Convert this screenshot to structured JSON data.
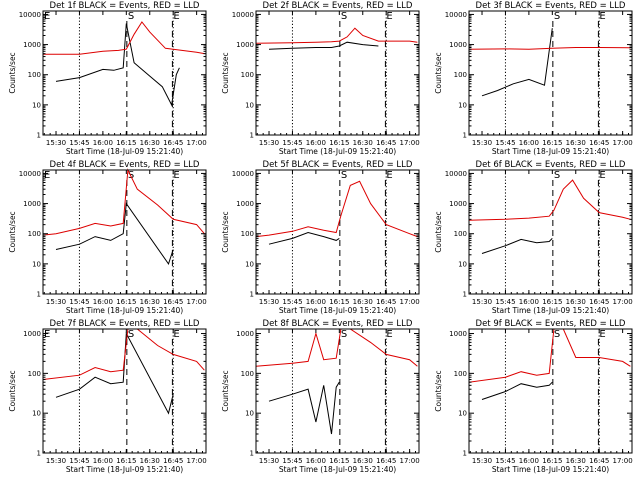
{
  "colors": {
    "events": "#000000",
    "lld": "#dd0000",
    "axis": "#000000"
  },
  "chart_data": [
    {
      "type": "line",
      "title": "Det 1f BLACK = Events, RED = LLD",
      "xlabel": "Start Time (18-Jul-09 15:21:40)",
      "ylabel": "Counts/sec",
      "xticks": [
        "15:30",
        "15:45",
        "16:00",
        "16:15",
        "16:30",
        "16:45",
        "17:00"
      ],
      "yticks": [
        "1",
        "10",
        "100",
        "1000",
        "10000"
      ],
      "ylim": [
        1,
        13000
      ],
      "log_y": true,
      "dotted_lines": [
        "15:45",
        "16:45"
      ],
      "markers": [
        {
          "label": "E",
          "at": "15:21:40"
        },
        {
          "label": "S",
          "at": "16:15:20"
        },
        {
          "label": "E",
          "at": "16:44:30"
        }
      ],
      "series": [
        {
          "name": "Events",
          "color": "#000000",
          "x": [
            "15:30",
            "15:45",
            "16:00",
            "16:07",
            "16:13",
            "16:15",
            "16:20",
            "16:30",
            "16:38",
            "16:44",
            "16:47",
            "16:49"
          ],
          "values": [
            60,
            80,
            150,
            140,
            170,
            5000,
            250,
            90,
            40,
            10,
            100,
            170
          ]
        },
        {
          "name": "LLD",
          "color": "#dd0000",
          "x": [
            "15:21",
            "15:45",
            "16:00",
            "16:10",
            "16:15",
            "16:20",
            "16:25",
            "16:30",
            "16:40",
            "17:00",
            "17:05"
          ],
          "values": [
            480,
            480,
            600,
            640,
            700,
            2200,
            5600,
            2600,
            750,
            560,
            500
          ]
        }
      ]
    },
    {
      "type": "line",
      "title": "Det 2f BLACK = Events, RED = LLD",
      "xlabel": "Start Time (18-Jul-09 15:21:40)",
      "ylabel": "Counts/sec",
      "xticks": [
        "15:30",
        "15:45",
        "16:00",
        "16:15",
        "16:30",
        "16:45",
        "17:00"
      ],
      "yticks": [
        "1",
        "10",
        "100",
        "1000",
        "10000"
      ],
      "ylim": [
        1,
        13000
      ],
      "log_y": true,
      "dotted_lines": [
        "15:45",
        "16:45"
      ],
      "markers": [
        {
          "label": "S",
          "at": "16:15:20"
        },
        {
          "label": "E",
          "at": "16:44:30"
        }
      ],
      "series": [
        {
          "name": "Events",
          "color": "#000000",
          "x": [
            "15:30",
            "15:45",
            "16:00",
            "16:10",
            "16:15",
            "16:20",
            "16:30",
            "16:40"
          ],
          "values": [
            700,
            750,
            800,
            800,
            900,
            1200,
            1000,
            900
          ]
        },
        {
          "name": "LLD",
          "color": "#dd0000",
          "x": [
            "15:21",
            "15:45",
            "16:00",
            "16:10",
            "16:15",
            "16:20",
            "16:25",
            "16:30",
            "16:40",
            "17:00",
            "17:05"
          ],
          "values": [
            1100,
            1150,
            1200,
            1250,
            1300,
            1800,
            3500,
            2000,
            1300,
            1300,
            1200
          ]
        }
      ]
    },
    {
      "type": "line",
      "title": "Det 3f BLACK = Events, RED = LLD",
      "xlabel": "Start Time (18-Jul-09 15:21:40)",
      "ylabel": "Counts/sec",
      "xticks": [
        "15:30",
        "15:45",
        "16:00",
        "16:15",
        "16:30",
        "16:45",
        "17:00"
      ],
      "yticks": [
        "1",
        "10",
        "100",
        "1000",
        "10000"
      ],
      "ylim": [
        1,
        13000
      ],
      "log_y": true,
      "dotted_lines": [
        "15:45",
        "16:45"
      ],
      "markers": [
        {
          "label": "S",
          "at": "16:15:20"
        },
        {
          "label": "E",
          "at": "16:44:30"
        }
      ],
      "series": [
        {
          "name": "Events",
          "color": "#000000",
          "x": [
            "15:30",
            "15:40",
            "15:50",
            "16:00",
            "16:10",
            "16:15"
          ],
          "values": [
            20,
            30,
            50,
            70,
            45,
            3500
          ]
        },
        {
          "name": "LLD",
          "color": "#dd0000",
          "x": [
            "15:21",
            "15:45",
            "16:00",
            "16:15",
            "16:30",
            "16:45",
            "17:05"
          ],
          "values": [
            700,
            720,
            700,
            750,
            800,
            800,
            780
          ]
        }
      ]
    },
    {
      "type": "line",
      "title": "Det 4f BLACK = Events, RED = LLD",
      "xlabel": "Start Time (18-Jul-09 15:21:40)",
      "ylabel": "Counts/sec",
      "xticks": [
        "15:30",
        "15:45",
        "16:00",
        "16:15",
        "16:30",
        "16:45",
        "17:00"
      ],
      "yticks": [
        "1",
        "10",
        "100",
        "1000",
        "10000"
      ],
      "ylim": [
        1,
        13000
      ],
      "log_y": true,
      "dotted_lines": [
        "15:45",
        "16:45"
      ],
      "markers": [
        {
          "label": "E",
          "at": "15:21:40"
        },
        {
          "label": "S",
          "at": "16:15:20"
        },
        {
          "label": "E",
          "at": "16:44:30"
        }
      ],
      "series": [
        {
          "name": "Events",
          "color": "#000000",
          "x": [
            "15:30",
            "15:45",
            "15:55",
            "16:05",
            "16:13",
            "16:15",
            "16:42",
            "16:45"
          ],
          "values": [
            30,
            45,
            80,
            60,
            100,
            1000,
            10,
            30
          ]
        },
        {
          "name": "LLD",
          "color": "#dd0000",
          "x": [
            "15:21",
            "15:30",
            "15:45",
            "15:55",
            "16:05",
            "16:13",
            "16:16",
            "16:22",
            "16:35",
            "16:45",
            "17:00",
            "17:05"
          ],
          "values": [
            90,
            100,
            150,
            220,
            180,
            220,
            13000,
            3000,
            900,
            300,
            200,
            100
          ]
        }
      ]
    },
    {
      "type": "line",
      "title": "Det 5f BLACK = Events, RED = LLD",
      "xlabel": "Start Time (18-Jul-09 15:21:40)",
      "ylabel": "Counts/sec",
      "xticks": [
        "15:30",
        "15:45",
        "16:00",
        "16:15",
        "16:30",
        "16:45",
        "17:00"
      ],
      "yticks": [
        "1",
        "10",
        "100",
        "1000",
        "10000"
      ],
      "ylim": [
        1,
        13000
      ],
      "log_y": true,
      "dotted_lines": [
        "15:45",
        "16:45"
      ],
      "markers": [
        {
          "label": "S",
          "at": "16:15:20"
        },
        {
          "label": "E",
          "at": "16:44:30"
        }
      ],
      "series": [
        {
          "name": "Events",
          "color": "#000000",
          "x": [
            "15:30",
            "15:45",
            "15:55",
            "16:05",
            "16:13",
            "16:15"
          ],
          "values": [
            45,
            70,
            110,
            80,
            60,
            70
          ]
        },
        {
          "name": "LLD",
          "color": "#dd0000",
          "x": [
            "15:21",
            "15:30",
            "15:45",
            "15:55",
            "16:05",
            "16:13",
            "16:16",
            "16:22",
            "16:28",
            "16:35",
            "16:45",
            "17:00",
            "17:05"
          ],
          "values": [
            80,
            90,
            120,
            170,
            130,
            110,
            400,
            4000,
            5500,
            1000,
            200,
            100,
            80
          ]
        }
      ]
    },
    {
      "type": "line",
      "title": "Det 6f BLACK = Events, RED = LLD",
      "xlabel": "Start Time (18-Jul-09 15:21:40)",
      "ylabel": "Counts/sec",
      "xticks": [
        "15:30",
        "15:45",
        "16:00",
        "16:15",
        "16:30",
        "16:45",
        "17:00"
      ],
      "yticks": [
        "1",
        "10",
        "100",
        "1000",
        "10000"
      ],
      "ylim": [
        1,
        13000
      ],
      "log_y": true,
      "dotted_lines": [
        "15:45",
        "16:45"
      ],
      "markers": [
        {
          "label": "S",
          "at": "16:15:20"
        },
        {
          "label": "E",
          "at": "16:44:30"
        }
      ],
      "series": [
        {
          "name": "Events",
          "color": "#000000",
          "x": [
            "15:30",
            "15:45",
            "15:55",
            "16:05",
            "16:13",
            "16:15"
          ],
          "values": [
            22,
            40,
            65,
            50,
            55,
            70
          ]
        },
        {
          "name": "LLD",
          "color": "#dd0000",
          "x": [
            "15:21",
            "15:45",
            "16:00",
            "16:13",
            "16:16",
            "16:22",
            "16:28",
            "16:35",
            "16:45",
            "17:00",
            "17:05"
          ],
          "values": [
            280,
            300,
            330,
            380,
            600,
            3000,
            6000,
            1500,
            500,
            350,
            300
          ]
        }
      ]
    },
    {
      "type": "line",
      "title": "Det 7f BLACK = Events, RED = LLD",
      "xlabel": "Start Time (18-Jul-09 15:21:40)",
      "ylabel": "Counts/sec",
      "xticks": [
        "15:30",
        "15:45",
        "16:00",
        "16:15",
        "16:30",
        "16:45",
        "17:00"
      ],
      "yticks": [
        "1",
        "10",
        "100",
        "1000"
      ],
      "ylim": [
        1,
        1300
      ],
      "log_y": true,
      "dotted_lines": [
        "15:45",
        "16:45"
      ],
      "markers": [
        {
          "label": "E",
          "at": "15:21:40"
        },
        {
          "label": "S",
          "at": "16:15:20"
        },
        {
          "label": "E",
          "at": "16:44:30"
        }
      ],
      "series": [
        {
          "name": "Events",
          "color": "#000000",
          "x": [
            "15:30",
            "15:45",
            "15:55",
            "16:05",
            "16:13",
            "16:15",
            "16:42",
            "16:45"
          ],
          "values": [
            25,
            40,
            80,
            55,
            60,
            1000,
            10,
            30
          ]
        },
        {
          "name": "LLD",
          "color": "#dd0000",
          "x": [
            "15:21",
            "15:45",
            "15:55",
            "16:05",
            "16:13",
            "16:16",
            "16:22",
            "16:35",
            "16:45",
            "17:00",
            "17:05"
          ],
          "values": [
            70,
            90,
            140,
            110,
            120,
            1300,
            1300,
            500,
            300,
            200,
            120
          ]
        }
      ]
    },
    {
      "type": "line",
      "title": "Det 8f BLACK = Events, RED = LLD",
      "xlabel": "Start Time (18-Jul-09 15:21:40)",
      "ylabel": "Counts/sec",
      "xticks": [
        "15:30",
        "15:45",
        "16:00",
        "16:15",
        "16:30",
        "16:45",
        "17:00"
      ],
      "yticks": [
        "1",
        "10",
        "100",
        "1000"
      ],
      "ylim": [
        1,
        1300
      ],
      "log_y": true,
      "dotted_lines": [
        "15:45",
        "16:45"
      ],
      "markers": [
        {
          "label": "S",
          "at": "16:15:20"
        },
        {
          "label": "E",
          "at": "16:44:30"
        }
      ],
      "series": [
        {
          "name": "Events",
          "color": "#000000",
          "x": [
            "15:30",
            "15:45",
            "15:55",
            "16:00",
            "16:05",
            "16:10",
            "16:13",
            "16:15"
          ],
          "values": [
            20,
            30,
            40,
            6,
            50,
            3,
            45,
            60
          ]
        },
        {
          "name": "LLD",
          "color": "#dd0000",
          "x": [
            "15:21",
            "15:45",
            "15:55",
            "16:00",
            "16:05",
            "16:13",
            "16:16",
            "16:22",
            "16:35",
            "16:45",
            "17:00",
            "17:05"
          ],
          "values": [
            150,
            180,
            200,
            1000,
            220,
            240,
            1300,
            1300,
            600,
            300,
            220,
            150
          ]
        }
      ]
    },
    {
      "type": "line",
      "title": "Det 9f BLACK = Events, RED = LLD",
      "xlabel": "Start Time (18-Jul-09 15:21:40)",
      "ylabel": "Counts/sec",
      "xticks": [
        "15:30",
        "15:45",
        "16:00",
        "16:15",
        "16:30",
        "16:45",
        "17:00"
      ],
      "yticks": [
        "1",
        "10",
        "100",
        "1000"
      ],
      "ylim": [
        1,
        1300
      ],
      "log_y": true,
      "dotted_lines": [
        "15:45",
        "16:45"
      ],
      "markers": [
        {
          "label": "S",
          "at": "16:15:20"
        },
        {
          "label": "E",
          "at": "16:44:30"
        }
      ],
      "series": [
        {
          "name": "Events",
          "color": "#000000",
          "x": [
            "15:30",
            "15:45",
            "15:55",
            "16:05",
            "16:13",
            "16:15"
          ],
          "values": [
            22,
            35,
            55,
            45,
            50,
            60
          ]
        },
        {
          "name": "LLD",
          "color": "#dd0000",
          "x": [
            "15:21",
            "15:45",
            "15:55",
            "16:05",
            "16:13",
            "16:16",
            "16:22",
            "16:30",
            "16:45",
            "17:00",
            "17:05"
          ],
          "values": [
            60,
            80,
            110,
            90,
            100,
            1300,
            1300,
            250,
            250,
            200,
            150
          ]
        }
      ]
    }
  ]
}
